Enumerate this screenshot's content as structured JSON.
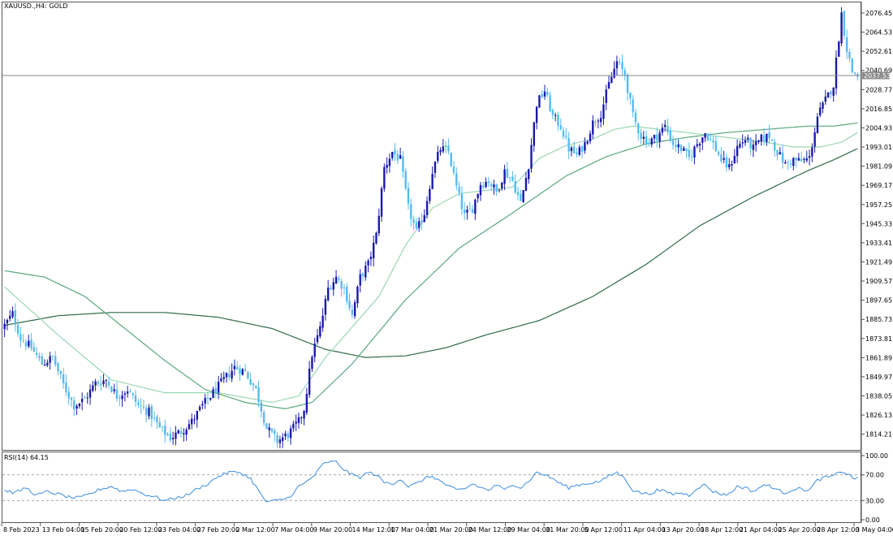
{
  "window": {
    "title": "XAUUSD.,H4:  GOLD"
  },
  "colors": {
    "bull": "#1a1aa8",
    "bear": "#55bbee",
    "ma_fast": "#9ad7b4",
    "ma_mid": "#5aa87c",
    "ma_slow": "#2e6b48",
    "rsi": "#3b8de0",
    "frame": "#555555",
    "price_line": "#8a8a8a",
    "price_tag": "#8a8a8a"
  },
  "current_price": "2037.53",
  "chart_data": [
    {
      "type": "candlestick",
      "title": "XAUUSD.,H4:  GOLD",
      "ylim": [
        1805,
        2082
      ],
      "y_ticks": [
        "2076.45",
        "2064.53",
        "2052.61",
        "2040.69",
        "2028.77",
        "2016.85",
        "2004.93",
        "1993.01",
        "1981.09",
        "1969.17",
        "1957.25",
        "1945.33",
        "1933.41",
        "1921.49",
        "1909.57",
        "1897.65",
        "1885.73",
        "1873.81",
        "1861.89",
        "1849.97",
        "1838.05",
        "1826.13",
        "1814.21"
      ],
      "x_ticks": [
        "8 Feb 2023",
        "13 Feb 04:00",
        "15 Feb 20:00",
        "20 Feb 12:00",
        "23 Feb 04:00",
        "27 Feb 20:00",
        "2 Mar 12:00",
        "7 Mar 04:00",
        "9 Mar 20:00",
        "14 Mar 12:00",
        "17 Mar 04:00",
        "21 Mar 20:00",
        "24 Mar 12:00",
        "29 Mar 04:00",
        "31 Mar 20:00",
        "5 Apr 12:00",
        "11 Apr 04:00",
        "13 Apr 20:00",
        "18 Apr 12:00",
        "21 Apr 04:00",
        "25 Apr 20:00",
        "28 Apr 12:00",
        "3 May 04:00"
      ],
      "close_anchors": [
        [
          0,
          1882
        ],
        [
          3,
          1889
        ],
        [
          6,
          1874
        ],
        [
          10,
          1868
        ],
        [
          14,
          1858
        ],
        [
          18,
          1862
        ],
        [
          22,
          1845
        ],
        [
          26,
          1832
        ],
        [
          30,
          1836
        ],
        [
          34,
          1846
        ],
        [
          38,
          1848
        ],
        [
          42,
          1838
        ],
        [
          46,
          1842
        ],
        [
          50,
          1832
        ],
        [
          54,
          1828
        ],
        [
          58,
          1818
        ],
        [
          62,
          1812
        ],
        [
          66,
          1816
        ],
        [
          70,
          1822
        ],
        [
          74,
          1832
        ],
        [
          78,
          1840
        ],
        [
          82,
          1848
        ],
        [
          86,
          1856
        ],
        [
          90,
          1853
        ],
        [
          94,
          1842
        ],
        [
          98,
          1818
        ],
        [
          102,
          1810
        ],
        [
          106,
          1814
        ],
        [
          110,
          1822
        ],
        [
          112,
          1830
        ],
        [
          115,
          1864
        ],
        [
          118,
          1880
        ],
        [
          121,
          1905
        ],
        [
          124,
          1912
        ],
        [
          127,
          1905
        ],
        [
          130,
          1888
        ],
        [
          133,
          1912
        ],
        [
          136,
          1920
        ],
        [
          139,
          1938
        ],
        [
          142,
          1980
        ],
        [
          145,
          1990
        ],
        [
          148,
          1985
        ],
        [
          151,
          1955
        ],
        [
          154,
          1940
        ],
        [
          157,
          1952
        ],
        [
          160,
          1978
        ],
        [
          163,
          1992
        ],
        [
          166,
          1990
        ],
        [
          169,
          1968
        ],
        [
          172,
          1950
        ],
        [
          175,
          1955
        ],
        [
          178,
          1970
        ],
        [
          181,
          1972
        ],
        [
          184,
          1965
        ],
        [
          187,
          1978
        ],
        [
          190,
          1972
        ],
        [
          193,
          1958
        ],
        [
          196,
          1982
        ],
        [
          199,
          2020
        ],
        [
          202,
          2028
        ],
        [
          205,
          2012
        ],
        [
          208,
          2006
        ],
        [
          211,
          1992
        ],
        [
          214,
          1988
        ],
        [
          217,
          1995
        ],
        [
          220,
          2008
        ],
        [
          223,
          2014
        ],
        [
          226,
          2032
        ],
        [
          229,
          2046
        ],
        [
          232,
          2038
        ],
        [
          235,
          2012
        ],
        [
          238,
          2000
        ],
        [
          241,
          1996
        ],
        [
          244,
          2000
        ],
        [
          247,
          2006
        ],
        [
          250,
          1995
        ],
        [
          253,
          1992
        ],
        [
          256,
          1986
        ],
        [
          259,
          1995
        ],
        [
          262,
          2002
        ],
        [
          265,
          1995
        ],
        [
          268,
          1985
        ],
        [
          271,
          1980
        ],
        [
          274,
          1993
        ],
        [
          277,
          1998
        ],
        [
          280,
          1992
        ],
        [
          283,
          1998
        ],
        [
          286,
          2000
        ],
        [
          289,
          1990
        ],
        [
          292,
          1982
        ],
        [
          295,
          1985
        ],
        [
          298,
          1984
        ],
        [
          301,
          1986
        ],
        [
          304,
          2012
        ],
        [
          307,
          2022
        ],
        [
          310,
          2032
        ],
        [
          313,
          2076
        ],
        [
          315,
          2054
        ],
        [
          317,
          2040
        ],
        [
          319,
          2037.53
        ]
      ],
      "n_bars": 320,
      "ma": {
        "fast": [
          [
            0,
            1906
          ],
          [
            20,
            1876
          ],
          [
            40,
            1848
          ],
          [
            60,
            1840
          ],
          [
            80,
            1840
          ],
          [
            100,
            1834
          ],
          [
            110,
            1838
          ],
          [
            120,
            1862
          ],
          [
            140,
            1900
          ],
          [
            150,
            1932
          ],
          [
            160,
            1955
          ],
          [
            170,
            1964
          ],
          [
            180,
            1966
          ],
          [
            190,
            1968
          ],
          [
            200,
            1986
          ],
          [
            210,
            1994
          ],
          [
            220,
            1998
          ],
          [
            228,
            2004
          ],
          [
            235,
            2006
          ],
          [
            245,
            2004
          ],
          [
            255,
            2002
          ],
          [
            265,
            2000
          ],
          [
            275,
            1998
          ],
          [
            285,
            1996
          ],
          [
            295,
            1993
          ],
          [
            305,
            1993
          ],
          [
            313,
            1996
          ],
          [
            319,
            2002
          ]
        ],
        "mid": [
          [
            0,
            1916
          ],
          [
            15,
            1912
          ],
          [
            30,
            1900
          ],
          [
            45,
            1880
          ],
          [
            60,
            1860
          ],
          [
            75,
            1842
          ],
          [
            90,
            1834
          ],
          [
            105,
            1830
          ],
          [
            115,
            1834
          ],
          [
            130,
            1858
          ],
          [
            150,
            1898
          ],
          [
            170,
            1930
          ],
          [
            190,
            1952
          ],
          [
            210,
            1975
          ],
          [
            225,
            1987
          ],
          [
            240,
            1995
          ],
          [
            255,
            1999
          ],
          [
            270,
            2002
          ],
          [
            285,
            2004
          ],
          [
            300,
            2006
          ],
          [
            310,
            2006
          ],
          [
            319,
            2008
          ]
        ],
        "slow": [
          [
            0,
            1882
          ],
          [
            20,
            1888
          ],
          [
            40,
            1890
          ],
          [
            60,
            1890
          ],
          [
            80,
            1887
          ],
          [
            100,
            1880
          ],
          [
            120,
            1867
          ],
          [
            135,
            1862
          ],
          [
            150,
            1863
          ],
          [
            165,
            1868
          ],
          [
            180,
            1876
          ],
          [
            200,
            1885
          ],
          [
            220,
            1900
          ],
          [
            240,
            1920
          ],
          [
            260,
            1944
          ],
          [
            280,
            1962
          ],
          [
            300,
            1978
          ],
          [
            310,
            1985
          ],
          [
            319,
            1992
          ]
        ]
      }
    },
    {
      "type": "line",
      "title": "RSI(14) 64.15",
      "ylim": [
        0,
        100
      ],
      "y_ticks": [
        "100.00",
        "70.00",
        "30.00",
        "0.00"
      ],
      "levels": [
        70,
        30
      ],
      "series": [
        {
          "name": "RSI(14)",
          "anchors": [
            [
              0,
              46
            ],
            [
              4,
              42
            ],
            [
              8,
              50
            ],
            [
              12,
              38
            ],
            [
              16,
              44
            ],
            [
              20,
              40
            ],
            [
              24,
              35
            ],
            [
              28,
              34
            ],
            [
              32,
              40
            ],
            [
              36,
              48
            ],
            [
              40,
              52
            ],
            [
              44,
              44
            ],
            [
              48,
              48
            ],
            [
              52,
              40
            ],
            [
              56,
              36
            ],
            [
              60,
              30
            ],
            [
              64,
              34
            ],
            [
              68,
              38
            ],
            [
              72,
              48
            ],
            [
              76,
              56
            ],
            [
              80,
              68
            ],
            [
              84,
              74
            ],
            [
              88,
              74
            ],
            [
              92,
              64
            ],
            [
              94,
              52
            ],
            [
              96,
              38
            ],
            [
              98,
              28
            ],
            [
              102,
              30
            ],
            [
              106,
              34
            ],
            [
              108,
              42
            ],
            [
              110,
              52
            ],
            [
              112,
              56
            ],
            [
              116,
              70
            ],
            [
              119,
              86
            ],
            [
              121,
              90
            ],
            [
              124,
              90
            ],
            [
              127,
              78
            ],
            [
              130,
              70
            ],
            [
              133,
              66
            ],
            [
              136,
              74
            ],
            [
              139,
              70
            ],
            [
              142,
              58
            ],
            [
              145,
              56
            ],
            [
              148,
              64
            ],
            [
              151,
              52
            ],
            [
              154,
              56
            ],
            [
              157,
              64
            ],
            [
              160,
              68
            ],
            [
              163,
              60
            ],
            [
              166,
              52
            ],
            [
              169,
              46
            ],
            [
              172,
              48
            ],
            [
              175,
              56
            ],
            [
              178,
              50
            ],
            [
              181,
              46
            ],
            [
              184,
              54
            ],
            [
              187,
              46
            ],
            [
              190,
              56
            ],
            [
              193,
              50
            ],
            [
              196,
              60
            ],
            [
              199,
              74
            ],
            [
              202,
              70
            ],
            [
              205,
              64
            ],
            [
              208,
              56
            ],
            [
              211,
              50
            ],
            [
              214,
              54
            ],
            [
              217,
              56
            ],
            [
              220,
              58
            ],
            [
              223,
              60
            ],
            [
              226,
              68
            ],
            [
              229,
              74
            ],
            [
              232,
              64
            ],
            [
              235,
              46
            ],
            [
              238,
              42
            ],
            [
              241,
              40
            ],
            [
              244,
              46
            ],
            [
              247,
              44
            ],
            [
              250,
              40
            ],
            [
              253,
              42
            ],
            [
              256,
              38
            ],
            [
              259,
              50
            ],
            [
              262,
              54
            ],
            [
              265,
              44
            ],
            [
              268,
              40
            ],
            [
              271,
              40
            ],
            [
              274,
              52
            ],
            [
              277,
              50
            ],
            [
              280,
              44
            ],
            [
              283,
              52
            ],
            [
              286,
              54
            ],
            [
              289,
              46
            ],
            [
              292,
              42
            ],
            [
              295,
              48
            ],
            [
              298,
              48
            ],
            [
              301,
              46
            ],
            [
              304,
              62
            ],
            [
              307,
              66
            ],
            [
              310,
              68
            ],
            [
              313,
              76
            ],
            [
              315,
              72
            ],
            [
              317,
              66
            ],
            [
              319,
              64.15
            ]
          ]
        }
      ]
    }
  ]
}
